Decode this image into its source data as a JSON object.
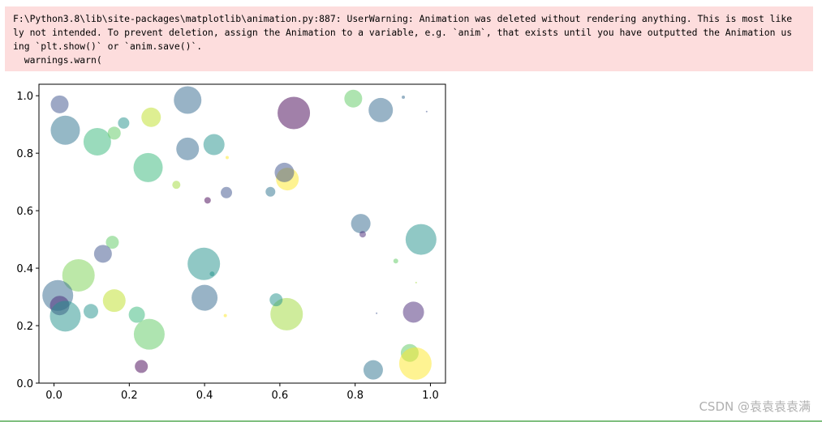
{
  "output": {
    "stderr_lines": [
      "F:\\Python3.8\\lib\\site-packages\\matplotlib\\animation.py:887: UserWarning: Animation was deleted without rendering anything. This is most like",
      "ly not intended. To prevent deletion, assign the Animation to a variable, e.g. `anim`, that exists until you have outputted the Animation us",
      "ing `plt.show()` or `anim.save()`.",
      "  warnings.warn("
    ],
    "stderr_background": "#fddddd"
  },
  "watermark": "CSDN @袁袁袁袁满",
  "chart_data": {
    "type": "scatter",
    "title": "",
    "xlabel": "",
    "ylabel": "",
    "xlim": [
      -0.04,
      1.04
    ],
    "ylim": [
      0.0,
      1.04
    ],
    "xticks": [
      "0.0",
      "0.2",
      "0.4",
      "0.6",
      "0.8",
      "1.0"
    ],
    "yticks": [
      "0.0",
      "0.2",
      "0.4",
      "0.6",
      "0.8",
      "1.0"
    ],
    "grid": false,
    "alpha": 0.5,
    "points": [
      {
        "x": 0.015,
        "y": 0.97,
        "size": 11,
        "color": "#3b528b"
      },
      {
        "x": 0.03,
        "y": 0.88,
        "size": 18,
        "color": "#2c728e"
      },
      {
        "x": 0.115,
        "y": 0.84,
        "size": 17,
        "color": "#35b779"
      },
      {
        "x": 0.16,
        "y": 0.87,
        "size": 8,
        "color": "#5ec962"
      },
      {
        "x": 0.185,
        "y": 0.905,
        "size": 7,
        "color": "#21918c"
      },
      {
        "x": 0.258,
        "y": 0.925,
        "size": 12,
        "color": "#bddf26"
      },
      {
        "x": 0.355,
        "y": 0.985,
        "size": 17,
        "color": "#31688e"
      },
      {
        "x": 0.25,
        "y": 0.75,
        "size": 18,
        "color": "#35b779"
      },
      {
        "x": 0.355,
        "y": 0.815,
        "size": 14,
        "color": "#31688e"
      },
      {
        "x": 0.425,
        "y": 0.83,
        "size": 13,
        "color": "#21918c"
      },
      {
        "x": 0.46,
        "y": 0.785,
        "size": 2,
        "color": "#fde725"
      },
      {
        "x": 0.325,
        "y": 0.69,
        "size": 5,
        "color": "#a0da39"
      },
      {
        "x": 0.408,
        "y": 0.636,
        "size": 4,
        "color": "#440154"
      },
      {
        "x": 0.458,
        "y": 0.663,
        "size": 7,
        "color": "#3b528b"
      },
      {
        "x": 0.575,
        "y": 0.666,
        "size": 6,
        "color": "#2c728e"
      },
      {
        "x": 0.62,
        "y": 0.71,
        "size": 14,
        "color": "#fde725"
      },
      {
        "x": 0.612,
        "y": 0.733,
        "size": 12,
        "color": "#3b528b"
      },
      {
        "x": 0.637,
        "y": 0.94,
        "size": 20,
        "color": "#440154"
      },
      {
        "x": 0.795,
        "y": 0.99,
        "size": 11,
        "color": "#5ec962"
      },
      {
        "x": 0.868,
        "y": 0.95,
        "size": 15,
        "color": "#31688e"
      },
      {
        "x": 0.928,
        "y": 0.995,
        "size": 2,
        "color": "#31688e"
      },
      {
        "x": 0.99,
        "y": 0.945,
        "size": 1,
        "color": "#3b528b"
      },
      {
        "x": 0.815,
        "y": 0.555,
        "size": 12,
        "color": "#31688e"
      },
      {
        "x": 0.82,
        "y": 0.518,
        "size": 4,
        "color": "#482878"
      },
      {
        "x": 0.975,
        "y": 0.5,
        "size": 19,
        "color": "#21918c"
      },
      {
        "x": 0.908,
        "y": 0.425,
        "size": 3,
        "color": "#5ec962"
      },
      {
        "x": 0.962,
        "y": 0.35,
        "size": 1,
        "color": "#a0da39"
      },
      {
        "x": 0.955,
        "y": 0.247,
        "size": 13,
        "color": "#482878"
      },
      {
        "x": 0.857,
        "y": 0.243,
        "size": 1,
        "color": "#3b528b"
      },
      {
        "x": 0.945,
        "y": 0.105,
        "size": 11,
        "color": "#5ec962"
      },
      {
        "x": 0.96,
        "y": 0.068,
        "size": 20,
        "color": "#fde725"
      },
      {
        "x": 0.848,
        "y": 0.046,
        "size": 12,
        "color": "#2c728e"
      },
      {
        "x": 0.618,
        "y": 0.24,
        "size": 20,
        "color": "#a0da39"
      },
      {
        "x": 0.59,
        "y": 0.29,
        "size": 8,
        "color": "#21918c"
      },
      {
        "x": 0.455,
        "y": 0.235,
        "size": 2,
        "color": "#fde725"
      },
      {
        "x": 0.42,
        "y": 0.38,
        "size": 3,
        "color": "#21918c"
      },
      {
        "x": 0.398,
        "y": 0.415,
        "size": 20,
        "color": "#21918c"
      },
      {
        "x": 0.4,
        "y": 0.297,
        "size": 16,
        "color": "#31688e"
      },
      {
        "x": 0.155,
        "y": 0.49,
        "size": 8,
        "color": "#5ec962"
      },
      {
        "x": 0.13,
        "y": 0.45,
        "size": 11,
        "color": "#3b528b"
      },
      {
        "x": 0.065,
        "y": 0.375,
        "size": 20,
        "color": "#7ad151"
      },
      {
        "x": 0.01,
        "y": 0.305,
        "size": 19,
        "color": "#31688e"
      },
      {
        "x": 0.015,
        "y": 0.27,
        "size": 12,
        "color": "#482878"
      },
      {
        "x": 0.03,
        "y": 0.233,
        "size": 19,
        "color": "#21918c"
      },
      {
        "x": 0.098,
        "y": 0.25,
        "size": 9,
        "color": "#21918c"
      },
      {
        "x": 0.16,
        "y": 0.287,
        "size": 14,
        "color": "#bddf26"
      },
      {
        "x": 0.22,
        "y": 0.238,
        "size": 10,
        "color": "#35b779"
      },
      {
        "x": 0.253,
        "y": 0.17,
        "size": 19,
        "color": "#5ec962"
      },
      {
        "x": 0.232,
        "y": 0.058,
        "size": 8,
        "color": "#440154"
      }
    ]
  }
}
